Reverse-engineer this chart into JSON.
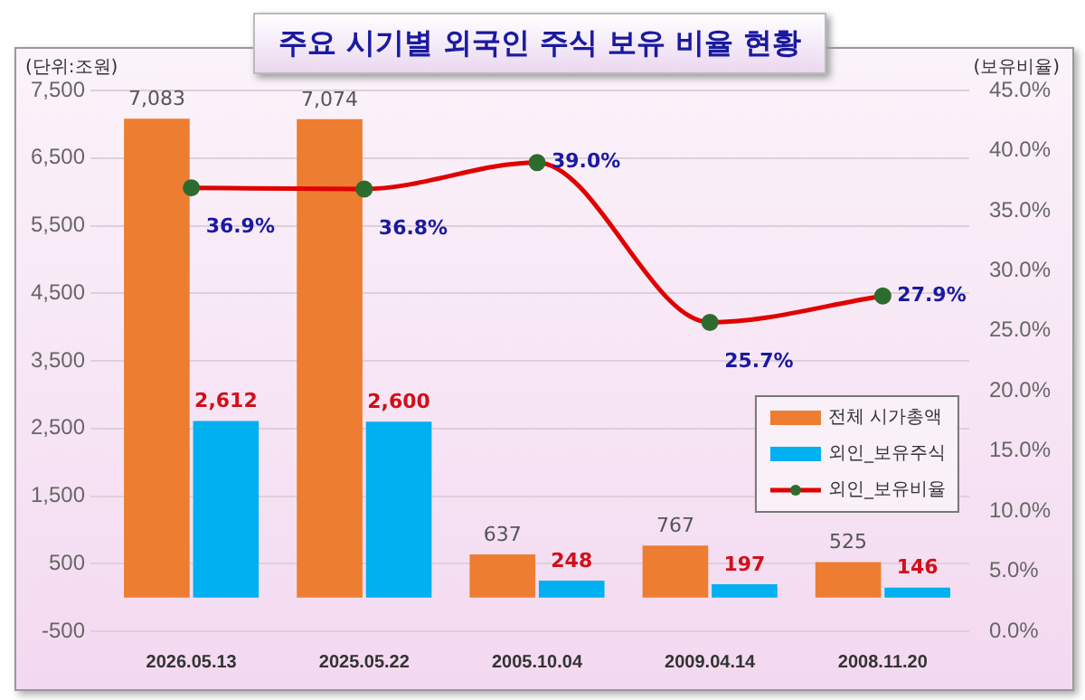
{
  "chart_data": {
    "type": "bar",
    "title": "주요 시기별 외국인 주식 보유 비율 현황",
    "ylabel": "(단위:조원)",
    "y2label": "(보유비율)",
    "categories": [
      "2026.05.13",
      "2025.05.22",
      "2005.10.04",
      "2009.04.14",
      "2008.11.20"
    ],
    "series": [
      {
        "name": "전체 시가총액",
        "color": "#ed7d31",
        "values": [
          7083,
          7074,
          637,
          767,
          525
        ],
        "value_labels": [
          "7,083",
          "7,074",
          "637",
          "767",
          "525"
        ]
      },
      {
        "name": "외인_보유주식",
        "color": "#00b0f0",
        "values": [
          2612,
          2600,
          248,
          197,
          146
        ],
        "value_labels": [
          "2,612",
          "2,600",
          "248",
          "197",
          "146"
        ]
      },
      {
        "name": "외인_보유비율",
        "type": "line",
        "axis": "y2",
        "color": "#e00000",
        "marker": "circle",
        "values": [
          36.9,
          36.8,
          39.0,
          25.7,
          27.9
        ],
        "value_labels": [
          "36.9%",
          "36.8%",
          "39.0%",
          "25.7%",
          "27.9%"
        ]
      }
    ],
    "ylim": [
      -500,
      7500
    ],
    "yticks": [
      {
        "value": -500,
        "label": "-500"
      },
      {
        "value": 500,
        "label": "500"
      },
      {
        "value": 1500,
        "label": "1,500"
      },
      {
        "value": 2500,
        "label": "2,500"
      },
      {
        "value": 3500,
        "label": "3,500"
      },
      {
        "value": 4500,
        "label": "4,500"
      },
      {
        "value": 5500,
        "label": "5,500"
      },
      {
        "value": 6500,
        "label": "6,500"
      },
      {
        "value": 7500,
        "label": "7,500"
      }
    ],
    "y2lim": [
      0,
      45
    ],
    "y2ticks": [
      {
        "value": 0,
        "label": "0.0%"
      },
      {
        "value": 5,
        "label": "5.0%"
      },
      {
        "value": 10,
        "label": "10.0%"
      },
      {
        "value": 15,
        "label": "15.0%"
      },
      {
        "value": 20,
        "label": "20.0%"
      },
      {
        "value": 25,
        "label": "25.0%"
      },
      {
        "value": 30,
        "label": "30.0%"
      },
      {
        "value": 35,
        "label": "35.0%"
      },
      {
        "value": 40,
        "label": "40.0%"
      },
      {
        "value": 45,
        "label": "45.0%"
      }
    ],
    "grid": "y",
    "legend": "right"
  }
}
